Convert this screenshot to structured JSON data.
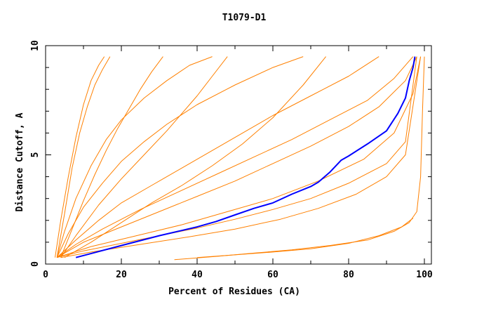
{
  "chart_data": {
    "type": "line",
    "title": "T1079-D1",
    "xlabel": "Percent of Residues (CA)",
    "ylabel": "Distance Cutoff, A",
    "xlim": [
      0,
      100
    ],
    "ylim": [
      0,
      10
    ],
    "x_ticks": [
      0,
      20,
      40,
      60,
      80,
      100
    ],
    "y_ticks": [
      0,
      5,
      10
    ],
    "grid": false,
    "legend": "none",
    "colors": {
      "models": "#ff8000",
      "highlight": "#0000ff",
      "axes": "#000000"
    },
    "series": [
      {
        "role": "highlight",
        "x": [
          8,
          20,
          30,
          40,
          45,
          50,
          55,
          60,
          65,
          70,
          72,
          75,
          78,
          80,
          85,
          90,
          93,
          95,
          96,
          97,
          97.5
        ],
        "y": [
          0.3,
          0.85,
          1.3,
          1.7,
          1.95,
          2.25,
          2.55,
          2.8,
          3.2,
          3.55,
          3.75,
          4.2,
          4.75,
          4.95,
          5.5,
          6.1,
          6.9,
          7.6,
          8.4,
          9.0,
          9.5
        ]
      },
      {
        "role": "model",
        "x": [
          3,
          10,
          20,
          30,
          40,
          50,
          60,
          70,
          80,
          90,
          95,
          98
        ],
        "y": [
          0.3,
          0.6,
          0.95,
          1.3,
          1.65,
          2.05,
          2.5,
          3.0,
          3.7,
          4.6,
          5.6,
          9.5
        ]
      },
      {
        "role": "model",
        "x": [
          3,
          12,
          24,
          36,
          48,
          60,
          72,
          84,
          92,
          97,
          99
        ],
        "y": [
          0.3,
          0.8,
          1.3,
          1.8,
          2.4,
          3.0,
          3.8,
          4.8,
          6.0,
          7.8,
          9.5
        ]
      },
      {
        "role": "model",
        "x": [
          4,
          12,
          25,
          38,
          50,
          62,
          72,
          82,
          90,
          95,
          99
        ],
        "y": [
          0.3,
          0.55,
          0.9,
          1.25,
          1.6,
          2.05,
          2.55,
          3.2,
          4.0,
          5.0,
          9.5
        ]
      },
      {
        "role": "model",
        "x": [
          3,
          10,
          20,
          30,
          40,
          50,
          60,
          70,
          80,
          88,
          95,
          98
        ],
        "y": [
          0.3,
          1.0,
          1.7,
          2.4,
          3.1,
          3.8,
          4.6,
          5.4,
          6.3,
          7.2,
          8.4,
          9.5
        ]
      },
      {
        "role": "model",
        "x": [
          3,
          8,
          15,
          25,
          35,
          45,
          55,
          65,
          75,
          85,
          92,
          97
        ],
        "y": [
          0.3,
          0.9,
          1.6,
          2.5,
          3.3,
          4.1,
          4.9,
          5.7,
          6.6,
          7.5,
          8.5,
          9.5
        ]
      },
      {
        "role": "model",
        "x": [
          3,
          8,
          14,
          20,
          28,
          36,
          44,
          52,
          60,
          70,
          80,
          88
        ],
        "y": [
          0.3,
          1.1,
          2.0,
          2.8,
          3.6,
          4.4,
          5.2,
          6.0,
          6.8,
          7.7,
          8.6,
          9.5
        ]
      },
      {
        "role": "model",
        "x": [
          3,
          6,
          10,
          15,
          20,
          26,
          32,
          40,
          50,
          60,
          68
        ],
        "y": [
          0.3,
          1.4,
          2.6,
          3.7,
          4.7,
          5.6,
          6.4,
          7.3,
          8.2,
          9.0,
          9.5
        ]
      },
      {
        "role": "model",
        "x": [
          3,
          5,
          8,
          12,
          16,
          20,
          26,
          32,
          38,
          44
        ],
        "y": [
          0.3,
          1.5,
          3.0,
          4.5,
          5.7,
          6.6,
          7.6,
          8.4,
          9.1,
          9.5
        ]
      },
      {
        "role": "model",
        "x": [
          2.5,
          4,
          6,
          8,
          10,
          12,
          14,
          15.5
        ],
        "y": [
          0.3,
          2.0,
          4.0,
          5.8,
          7.3,
          8.4,
          9.1,
          9.5
        ]
      },
      {
        "role": "model",
        "x": [
          3,
          5,
          7,
          9,
          11,
          13,
          15,
          17
        ],
        "y": [
          0.3,
          2.3,
          4.4,
          6.0,
          7.2,
          8.2,
          8.9,
          9.5
        ]
      },
      {
        "role": "model",
        "x": [
          4,
          7,
          10,
          13,
          16,
          19,
          22,
          25,
          28,
          31
        ],
        "y": [
          0.3,
          1.6,
          2.9,
          4.1,
          5.2,
          6.2,
          7.1,
          8.0,
          8.8,
          9.5
        ]
      },
      {
        "role": "model",
        "x": [
          4,
          8,
          14,
          20,
          26,
          32,
          36,
          40,
          44,
          48
        ],
        "y": [
          0.3,
          1.3,
          2.7,
          3.9,
          5.0,
          6.1,
          6.9,
          7.7,
          8.6,
          9.5
        ]
      },
      {
        "role": "model",
        "x": [
          5,
          12,
          20,
          28,
          36,
          44,
          52,
          60,
          68,
          74
        ],
        "y": [
          0.3,
          1.0,
          1.9,
          2.8,
          3.6,
          4.5,
          5.5,
          6.7,
          8.2,
          9.5
        ]
      },
      {
        "role": "model",
        "x": [
          34,
          45,
          55,
          65,
          75,
          85,
          92,
          96,
          98,
          99,
          99.5,
          100
        ],
        "y": [
          0.2,
          0.35,
          0.5,
          0.65,
          0.85,
          1.1,
          1.5,
          1.9,
          2.4,
          4.0,
          7.0,
          9.5
        ]
      },
      {
        "role": "model",
        "x": [
          40,
          50,
          60,
          70,
          80,
          88,
          94,
          97
        ],
        "y": [
          0.3,
          0.42,
          0.55,
          0.7,
          0.95,
          1.3,
          1.7,
          2.1
        ]
      }
    ]
  }
}
